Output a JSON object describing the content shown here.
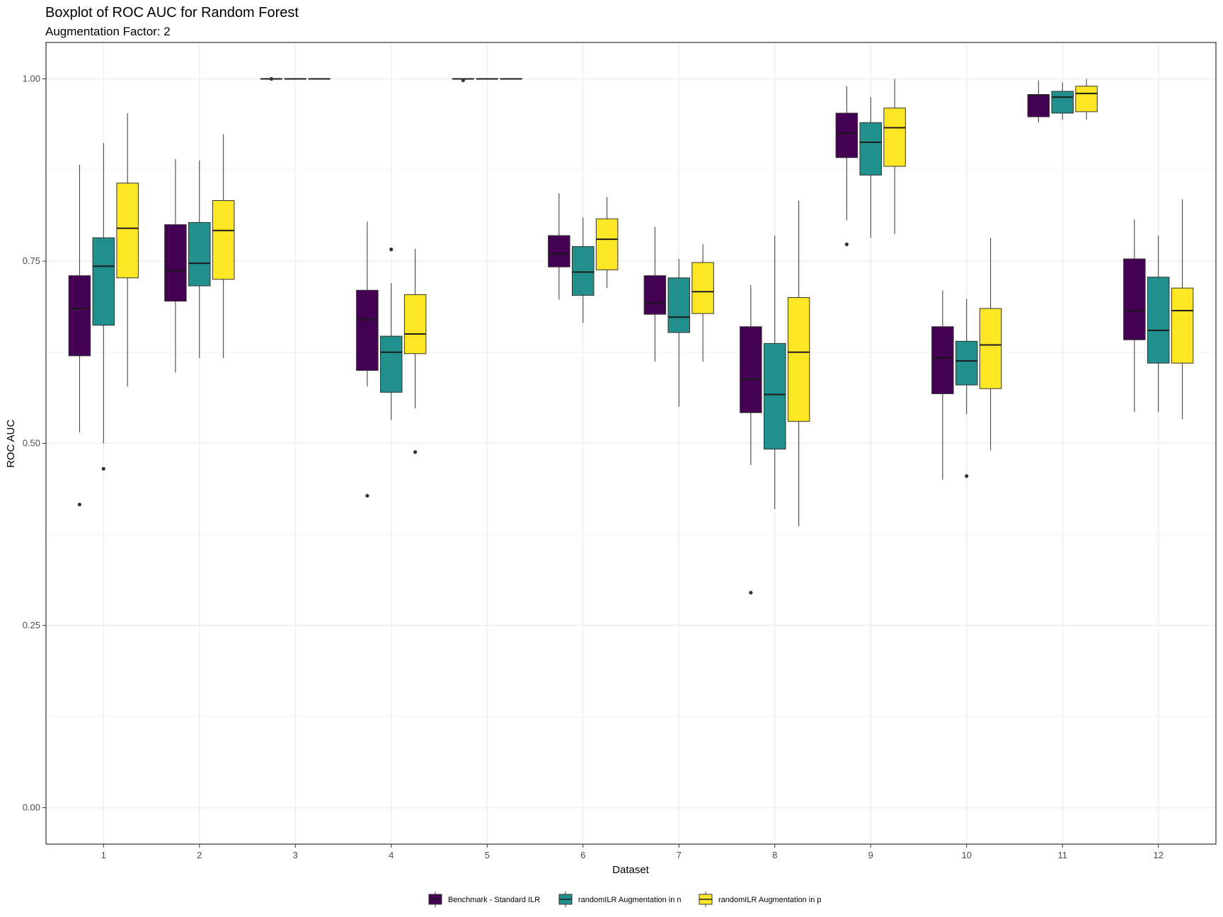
{
  "chart_data": {
    "type": "boxplot",
    "title": "Boxplot of ROC AUC for Random Forest",
    "subtitle": "Augmentation Factor: 2",
    "xlabel": "Dataset",
    "ylabel": "ROC AUC",
    "ylim": [
      -0.05,
      1.05
    ],
    "yticks": [
      "0.00",
      "0.25",
      "0.50",
      "0.75",
      "1.00"
    ],
    "categories": [
      "1",
      "2",
      "3",
      "4",
      "5",
      "6",
      "7",
      "8",
      "9",
      "10",
      "11",
      "12"
    ],
    "grid": true,
    "legend_position": "bottom",
    "series": [
      {
        "name": "Benchmark - Standard ILR",
        "color": "#440154",
        "boxes": [
          {
            "whisker_low": 0.515,
            "q1": 0.62,
            "median": 0.685,
            "q3": 0.73,
            "whisker_high": 0.882,
            "outliers": [
              0.416
            ]
          },
          {
            "whisker_low": 0.597,
            "q1": 0.695,
            "median": 0.737,
            "q3": 0.8,
            "whisker_high": 0.89,
            "outliers": []
          },
          {
            "whisker_low": 1.0,
            "q1": 1.0,
            "median": 1.0,
            "q3": 1.0,
            "whisker_high": 1.0,
            "outliers": [
              1.0
            ]
          },
          {
            "whisker_low": 0.578,
            "q1": 0.6,
            "median": 0.67,
            "q3": 0.71,
            "whisker_high": 0.804,
            "outliers": [
              0.428
            ]
          },
          {
            "whisker_low": 1.0,
            "q1": 1.0,
            "median": 1.0,
            "q3": 1.0,
            "whisker_high": 1.0,
            "outliers": [
              0.998
            ]
          },
          {
            "whisker_low": 0.697,
            "q1": 0.742,
            "median": 0.76,
            "q3": 0.785,
            "whisker_high": 0.843,
            "outliers": []
          },
          {
            "whisker_low": 0.612,
            "q1": 0.677,
            "median": 0.692,
            "q3": 0.73,
            "whisker_high": 0.797,
            "outliers": []
          },
          {
            "whisker_low": 0.47,
            "q1": 0.542,
            "median": 0.588,
            "q3": 0.66,
            "whisker_high": 0.717,
            "outliers": [
              0.295
            ]
          },
          {
            "whisker_low": 0.806,
            "q1": 0.892,
            "median": 0.925,
            "q3": 0.953,
            "whisker_high": 0.99,
            "outliers": [
              0.773
            ]
          },
          {
            "whisker_low": 0.45,
            "q1": 0.568,
            "median": 0.617,
            "q3": 0.66,
            "whisker_high": 0.71,
            "outliers": []
          },
          {
            "whisker_low": 0.94,
            "q1": 0.948,
            "median": 0.978,
            "q3": 0.978,
            "whisker_high": 0.998,
            "outliers": []
          },
          {
            "whisker_low": 0.543,
            "q1": 0.642,
            "median": 0.682,
            "q3": 0.753,
            "whisker_high": 0.807,
            "outliers": []
          }
        ]
      },
      {
        "name": "randomILR Augmentation in n",
        "color": "#21908c",
        "boxes": [
          {
            "whisker_low": 0.5,
            "q1": 0.662,
            "median": 0.743,
            "q3": 0.782,
            "whisker_high": 0.912,
            "outliers": [
              0.465
            ]
          },
          {
            "whisker_low": 0.617,
            "q1": 0.716,
            "median": 0.747,
            "q3": 0.803,
            "whisker_high": 0.888,
            "outliers": []
          },
          {
            "whisker_low": 1.0,
            "q1": 1.0,
            "median": 1.0,
            "q3": 1.0,
            "whisker_high": 1.0,
            "outliers": []
          },
          {
            "whisker_low": 0.532,
            "q1": 0.57,
            "median": 0.625,
            "q3": 0.647,
            "whisker_high": 0.72,
            "outliers": [
              0.766
            ]
          },
          {
            "whisker_low": 1.0,
            "q1": 1.0,
            "median": 1.0,
            "q3": 1.0,
            "whisker_high": 1.0,
            "outliers": []
          },
          {
            "whisker_low": 0.665,
            "q1": 0.703,
            "median": 0.735,
            "q3": 0.77,
            "whisker_high": 0.81,
            "outliers": []
          },
          {
            "whisker_low": 0.55,
            "q1": 0.652,
            "median": 0.673,
            "q3": 0.727,
            "whisker_high": 0.753,
            "outliers": []
          },
          {
            "whisker_low": 0.41,
            "q1": 0.492,
            "median": 0.567,
            "q3": 0.637,
            "whisker_high": 0.785,
            "outliers": []
          },
          {
            "whisker_low": 0.782,
            "q1": 0.868,
            "median": 0.913,
            "q3": 0.94,
            "whisker_high": 0.975,
            "outliers": []
          },
          {
            "whisker_low": 0.54,
            "q1": 0.58,
            "median": 0.613,
            "q3": 0.64,
            "whisker_high": 0.698,
            "outliers": [
              0.455
            ]
          },
          {
            "whisker_low": 0.944,
            "q1": 0.953,
            "median": 0.975,
            "q3": 0.983,
            "whisker_high": 0.995,
            "outliers": []
          },
          {
            "whisker_low": 0.543,
            "q1": 0.61,
            "median": 0.655,
            "q3": 0.728,
            "whisker_high": 0.785,
            "outliers": []
          }
        ]
      },
      {
        "name": "randomILR Augmentation in p",
        "color": "#fde725",
        "boxes": [
          {
            "whisker_low": 0.578,
            "q1": 0.727,
            "median": 0.795,
            "q3": 0.857,
            "whisker_high": 0.953,
            "outliers": []
          },
          {
            "whisker_low": 0.617,
            "q1": 0.725,
            "median": 0.792,
            "q3": 0.833,
            "whisker_high": 0.924,
            "outliers": []
          },
          {
            "whisker_low": 1.0,
            "q1": 1.0,
            "median": 1.0,
            "q3": 1.0,
            "whisker_high": 1.0,
            "outliers": []
          },
          {
            "whisker_low": 0.548,
            "q1": 0.623,
            "median": 0.65,
            "q3": 0.704,
            "whisker_high": 0.767,
            "outliers": [
              0.488
            ]
          },
          {
            "whisker_low": 1.0,
            "q1": 1.0,
            "median": 1.0,
            "q3": 1.0,
            "whisker_high": 1.0,
            "outliers": []
          },
          {
            "whisker_low": 0.713,
            "q1": 0.738,
            "median": 0.78,
            "q3": 0.808,
            "whisker_high": 0.838,
            "outliers": []
          },
          {
            "whisker_low": 0.612,
            "q1": 0.678,
            "median": 0.708,
            "q3": 0.748,
            "whisker_high": 0.773,
            "outliers": []
          },
          {
            "whisker_low": 0.386,
            "q1": 0.53,
            "median": 0.625,
            "q3": 0.7,
            "whisker_high": 0.833,
            "outliers": []
          },
          {
            "whisker_low": 0.787,
            "q1": 0.88,
            "median": 0.933,
            "q3": 0.96,
            "whisker_high": 1.0,
            "outliers": []
          },
          {
            "whisker_low": 0.49,
            "q1": 0.575,
            "median": 0.635,
            "q3": 0.685,
            "whisker_high": 0.782,
            "outliers": []
          },
          {
            "whisker_low": 0.944,
            "q1": 0.955,
            "median": 0.98,
            "q3": 0.99,
            "whisker_high": 1.0,
            "outliers": []
          },
          {
            "whisker_low": 0.533,
            "q1": 0.61,
            "median": 0.682,
            "q3": 0.713,
            "whisker_high": 0.835,
            "outliers": []
          }
        ]
      }
    ]
  }
}
